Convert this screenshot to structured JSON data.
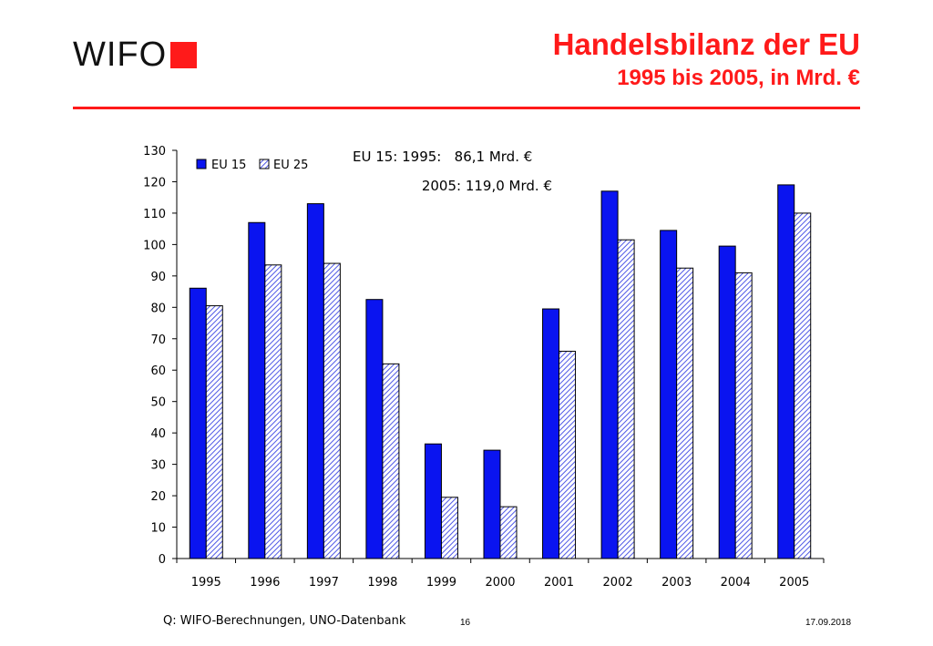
{
  "header": {
    "logo_text": "WIFO",
    "title": "Handelsbilanz der EU",
    "subtitle": "1995 bis 2005, in Mrd. €"
  },
  "colors": {
    "accent": "#ff1a1a",
    "eu15": "#0a14f0",
    "eu25_hatch": "#4f58e6",
    "axis": "#000000"
  },
  "chart_data": {
    "type": "bar",
    "categories": [
      "1995",
      "1996",
      "1997",
      "1998",
      "1999",
      "2000",
      "2001",
      "2002",
      "2003",
      "2004",
      "2005"
    ],
    "series": [
      {
        "name": "EU 15",
        "values": [
          86.1,
          107,
          113,
          82.5,
          36.5,
          34.5,
          79.5,
          117,
          104.5,
          99.5,
          119.0
        ]
      },
      {
        "name": "EU 25",
        "values": [
          80.5,
          93.5,
          94,
          62,
          19.5,
          16.5,
          66,
          101.5,
          92.5,
          91,
          110
        ]
      }
    ],
    "ylim": [
      0,
      130
    ],
    "yticks": [
      "0",
      "10",
      "20",
      "30",
      "40",
      "50",
      "60",
      "70",
      "80",
      "90",
      "100",
      "110",
      "120",
      "130"
    ],
    "grid": false,
    "legend": "top-left",
    "annotations": [
      "EU 15: 1995:   86,1 Mrd. €",
      "2005: 119,0 Mrd. €"
    ],
    "title": "",
    "xlabel": "",
    "ylabel": ""
  },
  "footer": {
    "source": "Q: WIFO-Berechnungen, UNO-Datenbank",
    "page": "16",
    "date": "17.09.2018"
  }
}
